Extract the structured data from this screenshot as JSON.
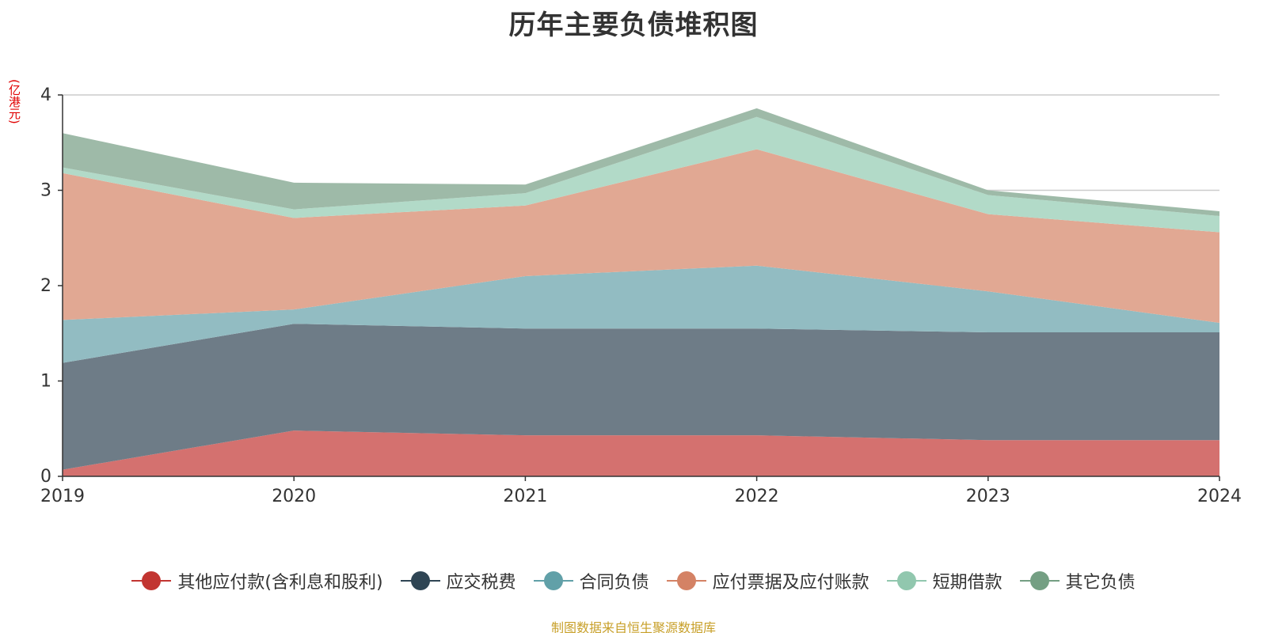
{
  "chart_data": {
    "type": "area",
    "stacked": true,
    "title": "历年主要负债堆积图",
    "unit_label": "(亿港元)",
    "source_note": "制图数据来自恒生聚源数据库",
    "x": [
      "2019",
      "2020",
      "2021",
      "2022",
      "2023",
      "2024"
    ],
    "ylim": [
      0,
      4
    ],
    "y_ticks": [
      "0",
      "1",
      "2",
      "3",
      "4"
    ],
    "grid": true,
    "legend_position": "bottom",
    "series": [
      {
        "name": "其他应付款(含利息和股利)",
        "color": "#c23531",
        "fill": "#d4716f",
        "values": [
          0.07,
          0.48,
          0.43,
          0.43,
          0.38,
          0.38
        ]
      },
      {
        "name": "应交税费",
        "color": "#2f4554",
        "fill": "#6e7c87",
        "values": [
          1.12,
          1.12,
          1.12,
          1.12,
          1.13,
          1.13
        ]
      },
      {
        "name": "合同负债",
        "color": "#61a0a8",
        "fill": "#92bcc2",
        "values": [
          0.45,
          0.15,
          0.55,
          0.66,
          0.43,
          0.1
        ]
      },
      {
        "name": "应付票据及应付账款",
        "color": "#d48265",
        "fill": "#e1a893",
        "values": [
          1.54,
          0.96,
          0.74,
          1.22,
          0.81,
          0.95
        ]
      },
      {
        "name": "短期借款",
        "color": "#91c7ae",
        "fill": "#b2dac8",
        "values": [
          0.06,
          0.09,
          0.13,
          0.34,
          0.2,
          0.17
        ]
      },
      {
        "name": "其它负债",
        "color": "#749f83",
        "fill": "#9ebaa8",
        "values": [
          0.36,
          0.28,
          0.09,
          0.09,
          0.05,
          0.05
        ]
      }
    ]
  }
}
